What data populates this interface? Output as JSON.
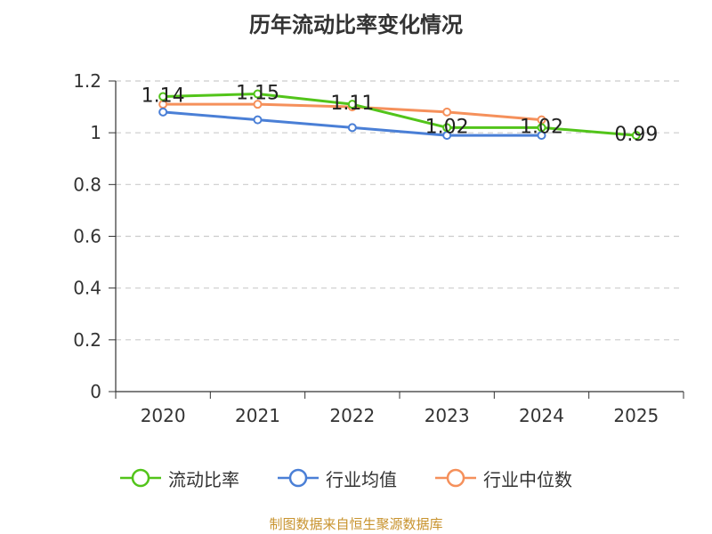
{
  "chart_data": {
    "type": "line",
    "title": "历年流动比率变化情况",
    "categories": [
      "2020",
      "2021",
      "2022",
      "2023",
      "2024",
      "2025"
    ],
    "ylim": [
      0,
      1.2
    ],
    "yticks": [
      "0",
      "0.2",
      "0.4",
      "0.6",
      "0.8",
      "1",
      "1.2"
    ],
    "grid": "horizontal dashed",
    "legend_position": "bottom",
    "series": [
      {
        "name": "流动比率",
        "color": "#52c41a",
        "values": [
          1.14,
          1.15,
          1.11,
          1.02,
          1.02,
          0.99
        ],
        "labels": [
          "1.14",
          "1.15",
          "1.11",
          "1.02",
          "1.02",
          "0.99"
        ]
      },
      {
        "name": "行业均值",
        "color": "#4a7fd6",
        "values": [
          1.08,
          1.05,
          1.02,
          0.99,
          0.99,
          null
        ]
      },
      {
        "name": "行业中位数",
        "color": "#f5905b",
        "values": [
          1.11,
          1.11,
          1.1,
          1.08,
          1.05,
          null
        ]
      }
    ]
  },
  "source": "制图数据来自恒生聚源数据库"
}
